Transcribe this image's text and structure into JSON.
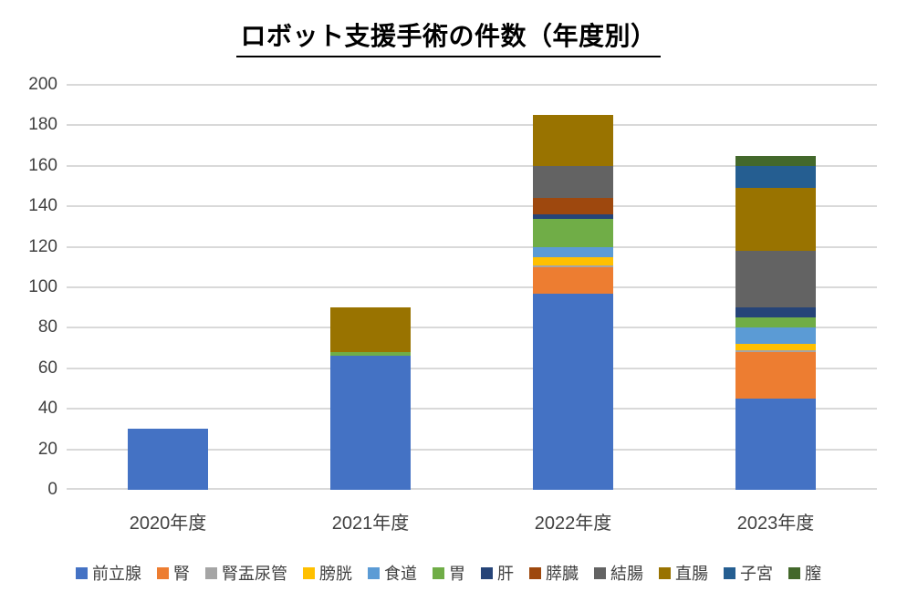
{
  "title": "ロボット支援手術の件数（年度別）",
  "colors": {
    "gridline": "#D9D9D9",
    "axis_text": "#404040",
    "title_text": "#000000",
    "background": "#FFFFFF"
  },
  "chart_data": {
    "type": "bar",
    "stacked": true,
    "title": "ロボット支援手術の件数（年度別）",
    "xlabel": "",
    "ylabel": "",
    "categories": [
      "2020年度",
      "2021年度",
      "2022年度",
      "2023年度"
    ],
    "series": [
      {
        "name": "前立腺",
        "color": "#4472C4",
        "values": [
          30,
          66,
          97,
          45
        ]
      },
      {
        "name": "腎",
        "color": "#ED7D31",
        "values": [
          0,
          0,
          13,
          23
        ]
      },
      {
        "name": "腎盂尿管",
        "color": "#A5A5A5",
        "values": [
          0,
          0,
          1,
          1
        ]
      },
      {
        "name": "膀胱",
        "color": "#FFC000",
        "values": [
          0,
          0,
          4,
          3
        ]
      },
      {
        "name": "食道",
        "color": "#5B9BD5",
        "values": [
          0,
          0,
          5,
          8
        ]
      },
      {
        "name": "胃",
        "color": "#70AD47",
        "values": [
          0,
          2,
          14,
          5
        ]
      },
      {
        "name": "肝",
        "color": "#264478",
        "values": [
          0,
          0,
          2,
          5
        ]
      },
      {
        "name": "膵臓",
        "color": "#9E480E",
        "values": [
          0,
          0,
          8,
          0
        ]
      },
      {
        "name": "結腸",
        "color": "#636363",
        "values": [
          0,
          0,
          16,
          28
        ]
      },
      {
        "name": "直腸",
        "color": "#997300",
        "values": [
          0,
          22,
          25,
          31
        ]
      },
      {
        "name": "子宮",
        "color": "#255E91",
        "values": [
          0,
          0,
          0,
          11
        ]
      },
      {
        "name": "膣",
        "color": "#43682B",
        "values": [
          0,
          0,
          0,
          5
        ]
      }
    ],
    "totals": [
      30,
      90,
      185,
      165
    ],
    "ylim": [
      0,
      200
    ],
    "yticks": [
      0,
      20,
      40,
      60,
      80,
      100,
      120,
      140,
      160,
      180,
      200
    ],
    "grid": true,
    "legend_position": "bottom"
  }
}
